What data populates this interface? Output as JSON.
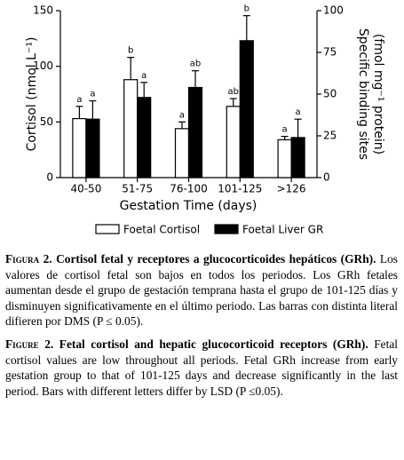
{
  "chart_data": {
    "type": "bar",
    "categories": [
      "40-50",
      "51-75",
      "76-100",
      "101-125",
      ">126"
    ],
    "x_label": "Gestation Time (days)",
    "y_label": "Cortisol (nmol L⁻¹)",
    "y2_label": [
      "Specific binding sites",
      "(fmol mg⁻¹ protein)"
    ],
    "series": [
      {
        "name": "Foetal Cortisol",
        "color": "#ffffff",
        "axis": "y",
        "values": [
          53,
          88,
          44,
          64,
          34
        ],
        "errors": [
          11,
          20,
          6,
          7,
          3
        ],
        "letters": [
          "a",
          "b",
          "a",
          "ab",
          "a"
        ]
      },
      {
        "name": "Foetal Liver GR",
        "color": "#000000",
        "axis": "y2",
        "values": [
          35,
          48,
          54,
          82,
          24
        ],
        "errors": [
          11,
          9,
          10,
          15,
          11
        ],
        "letters": [
          "a",
          "a",
          "ab",
          "b",
          "a"
        ]
      }
    ],
    "ylim": [
      0,
      150
    ],
    "yticks": [
      0,
      50,
      100,
      150
    ],
    "y2lim": [
      0,
      100
    ],
    "y2ticks": [
      0,
      25,
      50,
      75,
      100
    ]
  },
  "caption": [
    {
      "label": "Figura 2.",
      "title": "Cortisol fetal y receptores a glucocorticoides hepáticos (GRh).",
      "text": "Los valores de cortisol fetal son bajos en todos los periodos. Los GRh fetales aumentan desde el grupo de gestación temprana hasta el grupo de 101-125 días y disminuyen significativamente en el último periodo. Las barras con distinta literal difieren por DMS (P ≤ 0.05)."
    },
    {
      "label": "Figure 2.",
      "title": "Fetal cortisol and hepatic glucocorticoid receptors (GRh).",
      "text": "Fetal cortisol values are low throughout all periods. Fetal GRh increase from early gestation group to that of 101-125 days and decrease significantly in the last period. Bars with different letters differ by LSD (P ≤0.05)."
    }
  ]
}
